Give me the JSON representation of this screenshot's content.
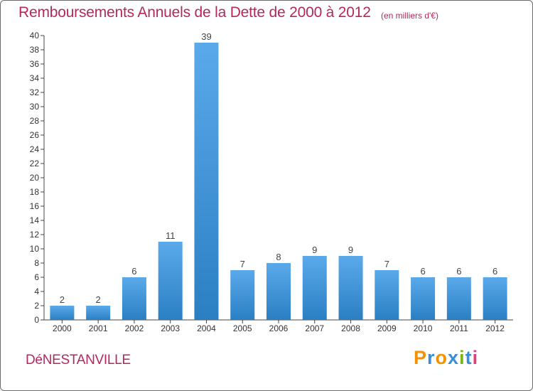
{
  "title": "Remboursements Annuels de la Dette de 2000 à 2012",
  "subtitle": "(en milliers d'€)",
  "commune": "DéNESTANVILLE",
  "logo": {
    "text": "Proxiti",
    "letters": [
      "P",
      "r",
      "o",
      "x",
      "i",
      "t",
      "i"
    ],
    "colors": [
      "#f39200",
      "#3a8ed8",
      "#f39200",
      "#3a8ed8",
      "#7ab51d",
      "#3a8ed8",
      "#e63a7d"
    ]
  },
  "colors": {
    "accent": "#b5285e",
    "bar_light": "#5aaaeb",
    "bar_dark": "#2a7fc3",
    "axis": "#444444"
  },
  "chart_data": {
    "type": "bar",
    "categories": [
      "2000",
      "2001",
      "2002",
      "2003",
      "2004",
      "2005",
      "2006",
      "2007",
      "2008",
      "2009",
      "2010",
      "2011",
      "2012"
    ],
    "values": [
      2,
      2,
      6,
      11,
      39,
      7,
      8,
      9,
      9,
      7,
      6,
      6,
      6
    ],
    "ylim": [
      0,
      40
    ],
    "yticks": [
      0,
      2,
      4,
      6,
      8,
      10,
      12,
      14,
      16,
      18,
      20,
      22,
      24,
      26,
      28,
      30,
      32,
      34,
      36,
      38,
      40
    ],
    "xlabel": "",
    "ylabel": "",
    "grid": false,
    "data_labels": true
  }
}
